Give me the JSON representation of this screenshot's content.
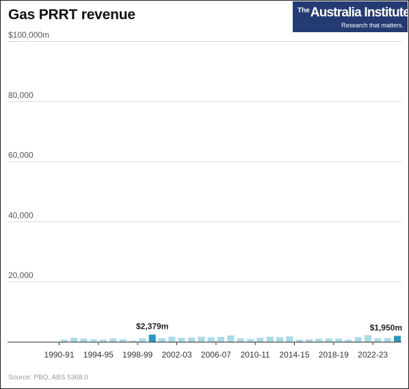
{
  "header": {
    "title": "Gas PRRT revenue"
  },
  "logo": {
    "the": "The",
    "name": "Australia Institute",
    "tagline": "Research that matters."
  },
  "footer": {
    "source": "Source: PBO, ABS 5368.0"
  },
  "colors": {
    "bar": "#a8dae7",
    "highlight": "#2a9ac4",
    "logo_bg": "#233a73",
    "grid": "#d9d9d9"
  },
  "chart_data": {
    "type": "bar",
    "title": "Gas PRRT revenue",
    "xlabel": "",
    "ylabel": "",
    "ylim": [
      0,
      100000
    ],
    "y_ticks": [
      {
        "value": 100000,
        "label": "$100,000m"
      },
      {
        "value": 80000,
        "label": "80,000"
      },
      {
        "value": 60000,
        "label": "60,000"
      },
      {
        "value": 40000,
        "label": "40,000"
      },
      {
        "value": 20000,
        "label": "20,000"
      }
    ],
    "x_tick_labels": [
      "1990-91",
      "1994-95",
      "1998-99",
      "2002-03",
      "2006-07",
      "2010-11",
      "2014-15",
      "2018-19",
      "2022-23"
    ],
    "grid": true,
    "legend": "none",
    "categories": [
      "1986-87",
      "1987-88",
      "1988-89",
      "1989-90",
      "1990-91",
      "1991-92",
      "1992-93",
      "1993-94",
      "1994-95",
      "1995-96",
      "1996-97",
      "1997-98",
      "1998-99",
      "1999-00",
      "2000-01",
      "2001-02",
      "2002-03",
      "2003-04",
      "2004-05",
      "2005-06",
      "2006-07",
      "2007-08",
      "2008-09",
      "2009-10",
      "2010-11",
      "2011-12",
      "2012-13",
      "2013-14",
      "2014-15",
      "2015-16",
      "2016-17",
      "2017-18",
      "2018-19",
      "2019-20",
      "2020-21",
      "2021-22",
      "2022-23",
      "2023-24",
      "2024-25",
      "2025-26"
    ],
    "values": [
      0,
      0,
      0,
      0,
      0,
      700,
      1300,
      1000,
      800,
      700,
      1100,
      800,
      400,
      1100,
      2379,
      1200,
      1700,
      1300,
      1400,
      1700,
      1500,
      1600,
      2100,
      1100,
      900,
      1300,
      1700,
      1500,
      1800,
      700,
      800,
      1000,
      1100,
      1000,
      700,
      1500,
      2200,
      1100,
      1200,
      1950
    ],
    "annotations": [
      {
        "category": "2000-01",
        "label": "$2,379m"
      },
      {
        "category": "2025-26",
        "label": "$1,950m"
      }
    ]
  }
}
